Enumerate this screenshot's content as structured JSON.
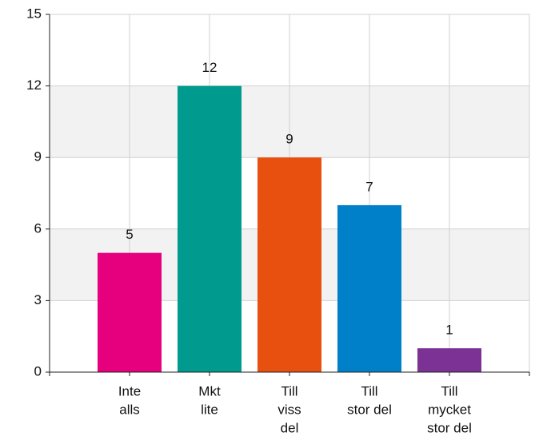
{
  "chart_data": {
    "type": "bar",
    "categories": [
      [
        "Inte",
        "alls"
      ],
      [
        "Mkt",
        "lite"
      ],
      [
        "Till",
        "viss",
        "del"
      ],
      [
        "Till",
        "stor del"
      ],
      [
        "Till",
        "mycket",
        "stor del"
      ]
    ],
    "values": [
      5,
      12,
      9,
      7,
      1
    ],
    "colors": [
      "#e6007e",
      "#009a8e",
      "#e8500f",
      "#0080c8",
      "#7b3294"
    ],
    "ylim": [
      0,
      15
    ],
    "yticks": [
      0,
      3,
      6,
      9,
      12,
      15
    ],
    "grid": true
  }
}
